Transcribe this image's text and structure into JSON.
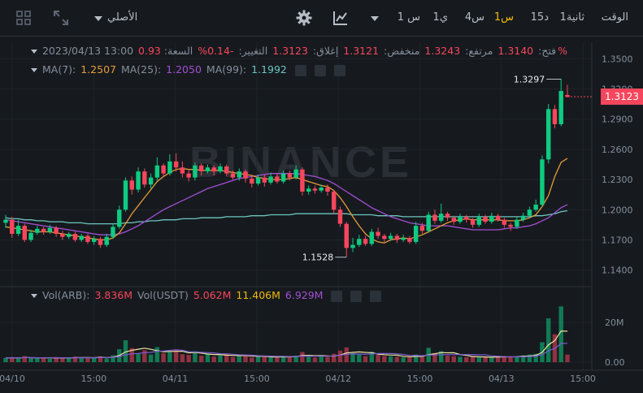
{
  "toolbar": {
    "time_label": "الوقت",
    "intervals": [
      {
        "label": "1ثانية",
        "active": false
      },
      {
        "label": "15د",
        "active": false
      },
      {
        "label": "1س",
        "active": true
      },
      {
        "label": "4س",
        "active": false
      },
      {
        "label": "1ي",
        "active": false
      },
      {
        "label": "1 س",
        "active": false
      }
    ],
    "original_label": "الأصلي"
  },
  "legend": {
    "date": "2023/04/13 13:00",
    "open_label": "فتح:",
    "open_value": "1.3140",
    "high_label": "مرتفع:",
    "high_value": "1.3243",
    "low_label": "منخفض:",
    "low_value": "1.3121",
    "close_label": "إغلاق:",
    "close_value": "1.3123",
    "change_label": "التغيير:",
    "change_value": "-0.14%",
    "amp_label": "السعة:",
    "amp_value": "0.93%"
  },
  "ma": {
    "ma7_label": "MA(7):",
    "ma7_value": "1.2507",
    "ma25_label": "MA(25):",
    "ma25_value": "1.2050",
    "ma99_label": "MA(99):",
    "ma99_value": "1.1992"
  },
  "vol": {
    "arb_label": "Vol(ARB):",
    "arb_value": "3.836M",
    "usdt_label": "Vol(USDT)",
    "usdt_value": "5.062M",
    "v2_value": "11.406M",
    "v3_value": "6.929M"
  },
  "watermark": "BINANCE",
  "price_axis": [
    "1.3500",
    "1.3200",
    "1.2900",
    "1.2600",
    "1.2300",
    "1.2000",
    "1.1700",
    "1.1400"
  ],
  "vol_axis": [
    "20M",
    "0.00"
  ],
  "time_axis": [
    "04/10",
    "15:00",
    "04/11",
    "15:00",
    "04/12",
    "15:00",
    "04/13",
    "15:00"
  ],
  "current_price": "1.3123",
  "high_marker": "1.3297",
  "low_marker": "1.1528",
  "colors": {
    "up": "#0ecb81",
    "down": "#f6465d",
    "ma7": "#e69b3a",
    "ma25": "#a34ed6",
    "ma99": "#6cc5c0",
    "accent": "#f0b90b"
  },
  "chart_data": {
    "type": "candlestick",
    "ylim": [
      1.13,
      1.36
    ],
    "candles": [
      {
        "o": 1.187,
        "c": 1.19,
        "h": 1.195,
        "l": 1.182
      },
      {
        "o": 1.19,
        "c": 1.176,
        "h": 1.193,
        "l": 1.172
      },
      {
        "o": 1.176,
        "c": 1.184,
        "h": 1.19,
        "l": 1.174
      },
      {
        "o": 1.184,
        "c": 1.17,
        "h": 1.186,
        "l": 1.168
      },
      {
        "o": 1.17,
        "c": 1.177,
        "h": 1.18,
        "l": 1.168
      },
      {
        "o": 1.177,
        "c": 1.181,
        "h": 1.184,
        "l": 1.175
      },
      {
        "o": 1.181,
        "c": 1.178,
        "h": 1.183,
        "l": 1.175
      },
      {
        "o": 1.178,
        "c": 1.182,
        "h": 1.185,
        "l": 1.176
      },
      {
        "o": 1.182,
        "c": 1.176,
        "h": 1.184,
        "l": 1.173
      },
      {
        "o": 1.176,
        "c": 1.173,
        "h": 1.179,
        "l": 1.17
      },
      {
        "o": 1.173,
        "c": 1.176,
        "h": 1.178,
        "l": 1.171
      },
      {
        "o": 1.176,
        "c": 1.17,
        "h": 1.178,
        "l": 1.168
      },
      {
        "o": 1.17,
        "c": 1.174,
        "h": 1.176,
        "l": 1.168
      },
      {
        "o": 1.174,
        "c": 1.168,
        "h": 1.176,
        "l": 1.166
      },
      {
        "o": 1.168,
        "c": 1.171,
        "h": 1.174,
        "l": 1.165
      },
      {
        "o": 1.171,
        "c": 1.165,
        "h": 1.173,
        "l": 1.162
      },
      {
        "o": 1.165,
        "c": 1.173,
        "h": 1.176,
        "l": 1.163
      },
      {
        "o": 1.173,
        "c": 1.183,
        "h": 1.186,
        "l": 1.171
      },
      {
        "o": 1.183,
        "c": 1.2,
        "h": 1.204,
        "l": 1.181
      },
      {
        "o": 1.2,
        "c": 1.229,
        "h": 1.232,
        "l": 1.198
      },
      {
        "o": 1.229,
        "c": 1.22,
        "h": 1.233,
        "l": 1.215
      },
      {
        "o": 1.22,
        "c": 1.238,
        "h": 1.242,
        "l": 1.217
      },
      {
        "o": 1.238,
        "c": 1.225,
        "h": 1.241,
        "l": 1.222
      },
      {
        "o": 1.225,
        "c": 1.232,
        "h": 1.236,
        "l": 1.221
      },
      {
        "o": 1.232,
        "c": 1.244,
        "h": 1.252,
        "l": 1.229
      },
      {
        "o": 1.244,
        "c": 1.236,
        "h": 1.246,
        "l": 1.233
      },
      {
        "o": 1.236,
        "c": 1.248,
        "h": 1.255,
        "l": 1.234
      },
      {
        "o": 1.248,
        "c": 1.242,
        "h": 1.256,
        "l": 1.238
      },
      {
        "o": 1.242,
        "c": 1.236,
        "h": 1.248,
        "l": 1.232
      },
      {
        "o": 1.236,
        "c": 1.232,
        "h": 1.239,
        "l": 1.228
      },
      {
        "o": 1.232,
        "c": 1.244,
        "h": 1.247,
        "l": 1.229
      },
      {
        "o": 1.244,
        "c": 1.238,
        "h": 1.246,
        "l": 1.234
      },
      {
        "o": 1.238,
        "c": 1.242,
        "h": 1.245,
        "l": 1.236
      },
      {
        "o": 1.242,
        "c": 1.238,
        "h": 1.244,
        "l": 1.234
      },
      {
        "o": 1.238,
        "c": 1.243,
        "h": 1.246,
        "l": 1.236
      },
      {
        "o": 1.243,
        "c": 1.236,
        "h": 1.245,
        "l": 1.233
      },
      {
        "o": 1.236,
        "c": 1.232,
        "h": 1.239,
        "l": 1.23
      },
      {
        "o": 1.232,
        "c": 1.238,
        "h": 1.241,
        "l": 1.229
      },
      {
        "o": 1.238,
        "c": 1.231,
        "h": 1.24,
        "l": 1.227
      },
      {
        "o": 1.231,
        "c": 1.226,
        "h": 1.233,
        "l": 1.222
      },
      {
        "o": 1.226,
        "c": 1.232,
        "h": 1.235,
        "l": 1.224
      },
      {
        "o": 1.232,
        "c": 1.227,
        "h": 1.235,
        "l": 1.223
      },
      {
        "o": 1.227,
        "c": 1.233,
        "h": 1.237,
        "l": 1.225
      },
      {
        "o": 1.233,
        "c": 1.228,
        "h": 1.236,
        "l": 1.226
      },
      {
        "o": 1.228,
        "c": 1.236,
        "h": 1.239,
        "l": 1.226
      },
      {
        "o": 1.236,
        "c": 1.232,
        "h": 1.239,
        "l": 1.229
      },
      {
        "o": 1.232,
        "c": 1.24,
        "h": 1.244,
        "l": 1.23
      },
      {
        "o": 1.24,
        "c": 1.218,
        "h": 1.242,
        "l": 1.214
      },
      {
        "o": 1.218,
        "c": 1.221,
        "h": 1.224,
        "l": 1.215
      },
      {
        "o": 1.221,
        "c": 1.219,
        "h": 1.224,
        "l": 1.216
      },
      {
        "o": 1.219,
        "c": 1.222,
        "h": 1.225,
        "l": 1.217
      },
      {
        "o": 1.222,
        "c": 1.218,
        "h": 1.225,
        "l": 1.214
      },
      {
        "o": 1.218,
        "c": 1.2,
        "h": 1.22,
        "l": 1.196
      },
      {
        "o": 1.2,
        "c": 1.186,
        "h": 1.203,
        "l": 1.183
      },
      {
        "o": 1.186,
        "c": 1.162,
        "h": 1.188,
        "l": 1.153
      },
      {
        "o": 1.162,
        "c": 1.165,
        "h": 1.172,
        "l": 1.158
      },
      {
        "o": 1.165,
        "c": 1.171,
        "h": 1.175,
        "l": 1.163
      },
      {
        "o": 1.171,
        "c": 1.166,
        "h": 1.174,
        "l": 1.164
      },
      {
        "o": 1.166,
        "c": 1.178,
        "h": 1.181,
        "l": 1.164
      },
      {
        "o": 1.178,
        "c": 1.174,
        "h": 1.182,
        "l": 1.171
      },
      {
        "o": 1.174,
        "c": 1.171,
        "h": 1.176,
        "l": 1.168
      },
      {
        "o": 1.171,
        "c": 1.174,
        "h": 1.177,
        "l": 1.169
      },
      {
        "o": 1.174,
        "c": 1.17,
        "h": 1.176,
        "l": 1.167
      },
      {
        "o": 1.17,
        "c": 1.172,
        "h": 1.175,
        "l": 1.168
      },
      {
        "o": 1.172,
        "c": 1.168,
        "h": 1.174,
        "l": 1.166
      },
      {
        "o": 1.168,
        "c": 1.184,
        "h": 1.188,
        "l": 1.166
      },
      {
        "o": 1.184,
        "c": 1.179,
        "h": 1.187,
        "l": 1.176
      },
      {
        "o": 1.179,
        "c": 1.195,
        "h": 1.198,
        "l": 1.177
      },
      {
        "o": 1.195,
        "c": 1.189,
        "h": 1.2,
        "l": 1.186
      },
      {
        "o": 1.189,
        "c": 1.196,
        "h": 1.206,
        "l": 1.187
      },
      {
        "o": 1.196,
        "c": 1.192,
        "h": 1.198,
        "l": 1.189
      },
      {
        "o": 1.192,
        "c": 1.188,
        "h": 1.194,
        "l": 1.185
      },
      {
        "o": 1.188,
        "c": 1.193,
        "h": 1.196,
        "l": 1.186
      },
      {
        "o": 1.193,
        "c": 1.19,
        "h": 1.195,
        "l": 1.187
      },
      {
        "o": 1.19,
        "c": 1.185,
        "h": 1.192,
        "l": 1.182
      },
      {
        "o": 1.185,
        "c": 1.193,
        "h": 1.196,
        "l": 1.183
      },
      {
        "o": 1.193,
        "c": 1.188,
        "h": 1.195,
        "l": 1.186
      },
      {
        "o": 1.188,
        "c": 1.194,
        "h": 1.197,
        "l": 1.186
      },
      {
        "o": 1.194,
        "c": 1.19,
        "h": 1.196,
        "l": 1.188
      },
      {
        "o": 1.19,
        "c": 1.185,
        "h": 1.192,
        "l": 1.182
      },
      {
        "o": 1.185,
        "c": 1.183,
        "h": 1.187,
        "l": 1.179
      },
      {
        "o": 1.183,
        "c": 1.19,
        "h": 1.193,
        "l": 1.181
      },
      {
        "o": 1.19,
        "c": 1.194,
        "h": 1.197,
        "l": 1.188
      },
      {
        "o": 1.194,
        "c": 1.2,
        "h": 1.203,
        "l": 1.192
      },
      {
        "o": 1.2,
        "c": 1.205,
        "h": 1.21,
        "l": 1.198
      },
      {
        "o": 1.205,
        "c": 1.25,
        "h": 1.254,
        "l": 1.203
      },
      {
        "o": 1.25,
        "c": 1.3,
        "h": 1.305,
        "l": 1.246
      },
      {
        "o": 1.3,
        "c": 1.285,
        "h": 1.304,
        "l": 1.281
      },
      {
        "o": 1.285,
        "c": 1.318,
        "h": 1.33,
        "l": 1.283
      },
      {
        "o": 1.314,
        "c": 1.312,
        "h": 1.324,
        "l": 1.312
      }
    ],
    "volumes": [
      2.1,
      2.4,
      1.8,
      3.0,
      2.0,
      1.9,
      2.2,
      1.7,
      2.6,
      2.3,
      1.9,
      2.8,
      2.0,
      2.5,
      2.1,
      2.9,
      1.8,
      3.4,
      6.5,
      11.0,
      7.0,
      4.5,
      6.0,
      3.8,
      7.5,
      4.5,
      5.0,
      6.4,
      4.0,
      3.6,
      5.5,
      3.2,
      4.1,
      2.8,
      3.5,
      3.9,
      2.6,
      3.7,
      3.0,
      2.4,
      2.9,
      2.7,
      2.5,
      2.2,
      3.1,
      2.8,
      3.3,
      5.1,
      2.7,
      2.3,
      3.0,
      2.6,
      4.2,
      5.8,
      7.4,
      4.5,
      3.8,
      3.0,
      5.2,
      3.6,
      3.1,
      2.9,
      2.7,
      2.4,
      2.6,
      3.8,
      2.9,
      7.2,
      4.6,
      5.5,
      3.3,
      3.0,
      2.7,
      2.5,
      2.8,
      2.4,
      2.6,
      2.2,
      2.9,
      3.1,
      2.5,
      3.0,
      3.4,
      3.8,
      4.2,
      10.0,
      22.0,
      14.0,
      28.0,
      3.8
    ],
    "ma7": [
      1.183,
      1.182,
      1.181,
      1.18,
      1.179,
      1.178,
      1.178,
      1.178,
      1.177,
      1.176,
      1.175,
      1.174,
      1.173,
      1.172,
      1.171,
      1.17,
      1.17,
      1.172,
      1.177,
      1.186,
      1.196,
      1.204,
      1.212,
      1.22,
      1.228,
      1.233,
      1.237,
      1.24,
      1.241,
      1.24,
      1.24,
      1.239,
      1.239,
      1.239,
      1.239,
      1.238,
      1.237,
      1.236,
      1.235,
      1.234,
      1.232,
      1.231,
      1.23,
      1.23,
      1.23,
      1.231,
      1.232,
      1.23,
      1.228,
      1.226,
      1.224,
      1.223,
      1.219,
      1.212,
      1.203,
      1.193,
      1.184,
      1.176,
      1.171,
      1.168,
      1.167,
      1.17,
      1.171,
      1.172,
      1.171,
      1.173,
      1.175,
      1.178,
      1.181,
      1.184,
      1.187,
      1.189,
      1.19,
      1.191,
      1.19,
      1.19,
      1.19,
      1.19,
      1.19,
      1.189,
      1.189,
      1.189,
      1.19,
      1.192,
      1.195,
      1.203,
      1.214,
      1.233,
      1.247,
      1.251
    ],
    "ma25": [
      1.19,
      1.189,
      1.188,
      1.187,
      1.186,
      1.185,
      1.184,
      1.183,
      1.182,
      1.181,
      1.18,
      1.179,
      1.178,
      1.177,
      1.176,
      1.175,
      1.175,
      1.175,
      1.176,
      1.178,
      1.181,
      1.184,
      1.188,
      1.192,
      1.196,
      1.2,
      1.203,
      1.206,
      1.209,
      1.212,
      1.215,
      1.218,
      1.221,
      1.223,
      1.225,
      1.227,
      1.229,
      1.231,
      1.232,
      1.233,
      1.234,
      1.235,
      1.236,
      1.236,
      1.236,
      1.236,
      1.236,
      1.235,
      1.234,
      1.233,
      1.231,
      1.229,
      1.226,
      1.222,
      1.218,
      1.214,
      1.21,
      1.206,
      1.202,
      1.199,
      1.196,
      1.193,
      1.191,
      1.189,
      1.187,
      1.186,
      1.185,
      1.184,
      1.184,
      1.184,
      1.184,
      1.183,
      1.182,
      1.181,
      1.18,
      1.18,
      1.18,
      1.18,
      1.18,
      1.181,
      1.182,
      1.182,
      1.183,
      1.184,
      1.186,
      1.189,
      1.192,
      1.197,
      1.202,
      1.205
    ],
    "ma99": [
      1.192,
      1.191,
      1.191,
      1.19,
      1.19,
      1.189,
      1.189,
      1.188,
      1.188,
      1.188,
      1.187,
      1.187,
      1.187,
      1.186,
      1.186,
      1.186,
      1.186,
      1.186,
      1.186,
      1.187,
      1.187,
      1.188,
      1.188,
      1.189,
      1.189,
      1.19,
      1.19,
      1.19,
      1.191,
      1.191,
      1.191,
      1.192,
      1.192,
      1.192,
      1.192,
      1.193,
      1.193,
      1.193,
      1.193,
      1.194,
      1.194,
      1.194,
      1.195,
      1.195,
      1.195,
      1.195,
      1.196,
      1.196,
      1.196,
      1.196,
      1.196,
      1.196,
      1.196,
      1.196,
      1.196,
      1.195,
      1.195,
      1.195,
      1.195,
      1.194,
      1.194,
      1.194,
      1.194,
      1.193,
      1.193,
      1.193,
      1.193,
      1.193,
      1.193,
      1.193,
      1.193,
      1.193,
      1.193,
      1.193,
      1.193,
      1.193,
      1.193,
      1.193,
      1.193,
      1.193,
      1.193,
      1.193,
      1.193,
      1.193,
      1.194,
      1.194,
      1.195,
      1.196,
      1.198,
      1.199
    ]
  }
}
